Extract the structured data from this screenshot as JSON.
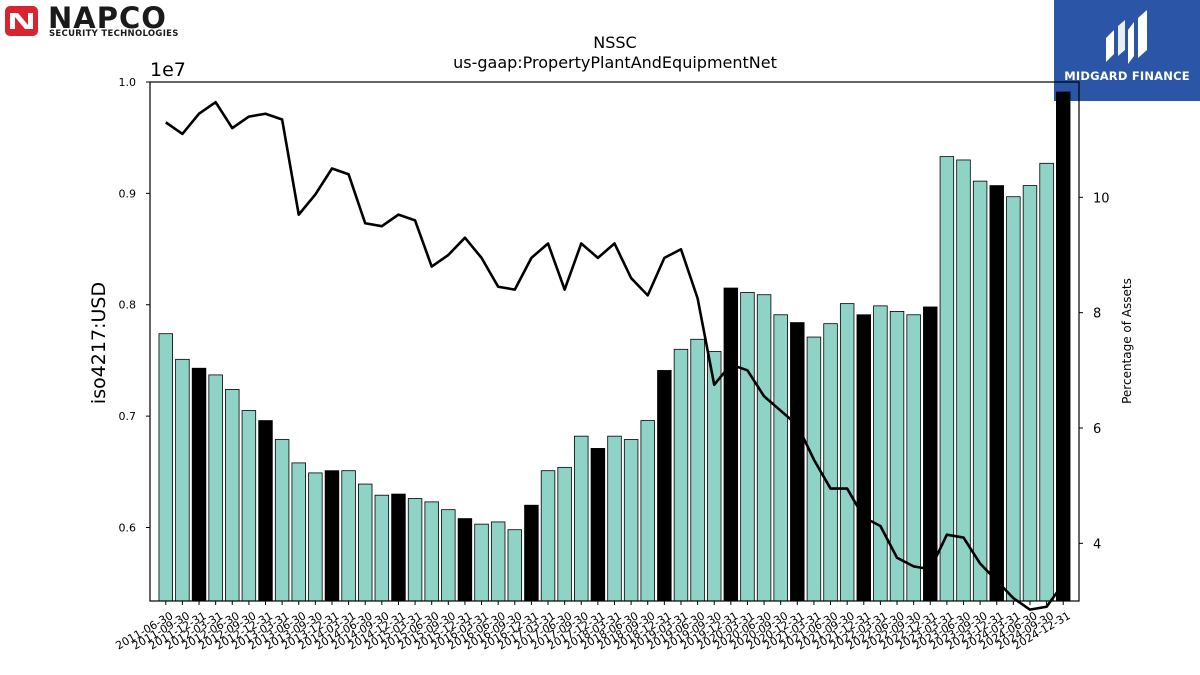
{
  "header": {
    "company_logo": {
      "name": "NAPCO",
      "tagline": "SECURITY TECHNOLOGIES",
      "brand_color": "#d9232e"
    },
    "badge": {
      "text": "MIDGARD FINANCE",
      "color": "#2b56a8"
    }
  },
  "chart_data": {
    "type": "bar",
    "title": "NSSC",
    "subtitle": "us-gaap:PropertyPlantAndEquipmentNet",
    "ylabel": "iso4217:USD",
    "y2label": "Percentage of Assets",
    "y_offset_label": "1e7",
    "y_scale_factor": 10000000,
    "ylim": [
      5340000,
      10000000
    ],
    "y_ticks": [
      0.6,
      0.7,
      0.8,
      0.9,
      1.0
    ],
    "y2lim": [
      3,
      12
    ],
    "y2_ticks": [
      4,
      6,
      8,
      10
    ],
    "grid": false,
    "colors": {
      "bar": "#8fd3c7",
      "bar_highlight": "#000000",
      "line": "#000000"
    },
    "categories": [
      "2011-06-30",
      "2011-09-30",
      "2011-12-31",
      "2012-03-31",
      "2012-06-30",
      "2012-09-30",
      "2012-12-31",
      "2013-03-31",
      "2013-06-30",
      "2013-09-30",
      "2013-12-31",
      "2014-03-31",
      "2014-06-30",
      "2014-09-30",
      "2014-12-31",
      "2015-03-31",
      "2015-06-30",
      "2015-09-30",
      "2015-12-31",
      "2016-03-31",
      "2016-06-30",
      "2016-09-30",
      "2016-12-31",
      "2017-03-31",
      "2017-06-30",
      "2017-09-30",
      "2017-12-31",
      "2018-03-31",
      "2018-06-30",
      "2018-09-30",
      "2018-12-31",
      "2019-03-31",
      "2019-06-30",
      "2019-09-30",
      "2019-12-31",
      "2020-03-31",
      "2020-06-30",
      "2020-09-30",
      "2020-12-31",
      "2021-03-31",
      "2021-06-30",
      "2021-09-30",
      "2021-12-31",
      "2022-03-31",
      "2022-06-30",
      "2022-09-30",
      "2022-12-31",
      "2023-03-31",
      "2023-06-30",
      "2023-09-30",
      "2023-12-31",
      "2024-03-31",
      "2024-06-30",
      "2024-09-30",
      "2024-12-31"
    ],
    "fiscal_year_end_highlight": [
      false,
      false,
      true,
      false,
      false,
      false,
      true,
      false,
      false,
      false,
      true,
      false,
      false,
      false,
      true,
      false,
      false,
      false,
      true,
      false,
      false,
      false,
      true,
      false,
      false,
      false,
      true,
      false,
      false,
      false,
      true,
      false,
      false,
      false,
      true,
      false,
      false,
      false,
      true,
      false,
      false,
      false,
      true,
      false,
      false,
      false,
      true,
      false,
      false,
      false,
      true,
      false,
      false,
      false,
      true
    ],
    "series": [
      {
        "name": "",
        "type": "bar",
        "axis": "left",
        "values": [
          7740000,
          7510000,
          7430000,
          7370000,
          7240000,
          7050000,
          6960000,
          6790000,
          6580000,
          6490000,
          6510000,
          6510000,
          6390000,
          6290000,
          6300000,
          6260000,
          6230000,
          6160000,
          6080000,
          6030000,
          6050000,
          5980000,
          6200000,
          6510000,
          6540000,
          6820000,
          6710000,
          6820000,
          6790000,
          6960000,
          7410000,
          7600000,
          7690000,
          7580000,
          8150000,
          8110000,
          8090000,
          7910000,
          7840000,
          7710000,
          7830000,
          8010000,
          7910000,
          7990000,
          7940000,
          7910000,
          7980000,
          9330000,
          9300000,
          9110000,
          9070000,
          8970000,
          9070000,
          9270000,
          9910000
        ]
      },
      {
        "name": "",
        "type": "line",
        "axis": "right",
        "values": [
          11.3,
          11.1,
          11.45,
          11.65,
          11.2,
          11.4,
          11.45,
          11.35,
          9.7,
          10.05,
          10.5,
          10.4,
          9.55,
          9.5,
          9.7,
          9.6,
          8.8,
          9.0,
          9.3,
          8.95,
          8.45,
          8.4,
          8.95,
          9.2,
          8.4,
          9.2,
          8.95,
          9.2,
          8.6,
          8.3,
          8.95,
          9.1,
          8.25,
          6.75,
          7.1,
          7.0,
          6.55,
          6.3,
          6.05,
          5.45,
          4.95,
          4.95,
          4.45,
          4.3,
          3.75,
          3.6,
          3.55,
          4.15,
          4.1,
          3.65,
          3.35,
          3.05,
          2.85,
          2.9,
          3.3
        ]
      }
    ]
  }
}
